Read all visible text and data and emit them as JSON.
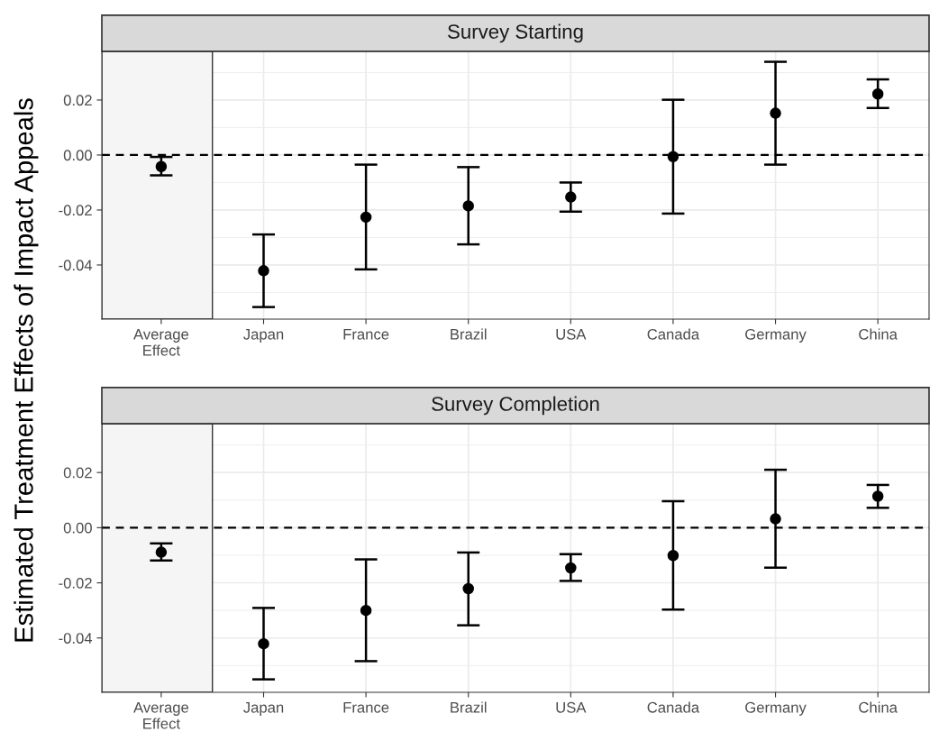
{
  "chart_data": [
    {
      "type": "scatter",
      "title": "Survey Starting",
      "ylabel": "Estimated Treatment Effects of Impact Appeals",
      "categories": [
        "Average\nEffect",
        "Japan",
        "France",
        "Brazil",
        "USA",
        "Canada",
        "Germany",
        "China"
      ],
      "series": [
        {
          "color": "#000000",
          "values": [
            -0.0042,
            -0.0421,
            -0.0226,
            -0.0185,
            -0.0153,
            -0.0006,
            0.0152,
            0.0222
          ],
          "errors": [
            [
              -0.0074,
              -0.0007
            ],
            [
              -0.0553,
              -0.0289
            ],
            [
              -0.0416,
              -0.0035
            ],
            [
              -0.0325,
              -0.0044
            ],
            [
              -0.0206,
              -0.01
            ],
            [
              -0.0213,
              0.0201
            ],
            [
              -0.0035,
              0.0339
            ],
            [
              0.0171,
              0.0275
            ]
          ]
        }
      ],
      "ylim": [
        -0.0597,
        0.0377
      ],
      "yticks": [
        {
          "value": -0.04,
          "label": "-0.04"
        },
        {
          "value": -0.02,
          "label": "-0.02"
        },
        {
          "value": 0,
          "label": "0.00"
        },
        {
          "value": 0.02,
          "label": "0.02"
        }
      ],
      "ref_lines": [
        {
          "axis": "y",
          "value": 0,
          "color": "#000000",
          "line_style": "dashed"
        }
      ],
      "bands": [
        {
          "axis": "x",
          "from": "Average\nEffect",
          "to": "Average\nEffect",
          "color": "#f5f5f5"
        }
      ],
      "grid": true,
      "marker": "circle"
    },
    {
      "type": "scatter",
      "title": "Survey Completion",
      "categories": [
        "Average\nEffect",
        "Japan",
        "France",
        "Brazil",
        "USA",
        "Canada",
        "Germany",
        "China"
      ],
      "series": [
        {
          "color": "#000000",
          "values": [
            -0.0089,
            -0.0421,
            -0.03,
            -0.0221,
            -0.0146,
            -0.0101,
            0.0032,
            0.0114
          ],
          "errors": [
            [
              -0.0119,
              -0.0057
            ],
            [
              -0.055,
              -0.0291
            ],
            [
              -0.0484,
              -0.0115
            ],
            [
              -0.0354,
              -0.009
            ],
            [
              -0.0193,
              -0.0096
            ],
            [
              -0.0297,
              0.0096
            ],
            [
              -0.0145,
              0.021
            ],
            [
              0.0072,
              0.0155
            ]
          ]
        }
      ],
      "ylim": [
        -0.0597,
        0.0377
      ],
      "yticks": [
        {
          "value": -0.04,
          "label": "-0.04"
        },
        {
          "value": -0.02,
          "label": "-0.02"
        },
        {
          "value": 0,
          "label": "0.00"
        },
        {
          "value": 0.02,
          "label": "0.02"
        }
      ],
      "ref_lines": [
        {
          "axis": "y",
          "value": 0,
          "color": "#000000",
          "line_style": "dashed"
        }
      ],
      "bands": [
        {
          "axis": "x",
          "from": "Average\nEffect",
          "to": "Average\nEffect",
          "color": "#f5f5f5"
        }
      ],
      "grid": true,
      "marker": "circle"
    }
  ]
}
